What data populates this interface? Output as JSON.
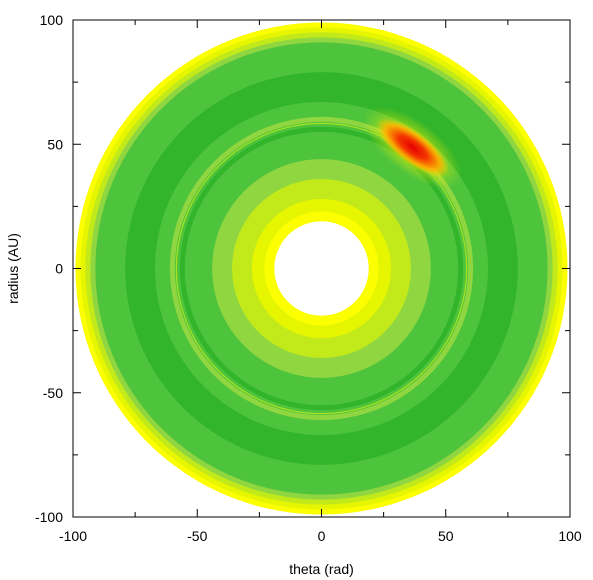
{
  "chart_data": {
    "type": "heatmap",
    "title": "",
    "xlabel": "theta (rad)",
    "ylabel": "radius (AU)",
    "xlim": [
      -100,
      100
    ],
    "ylim": [
      -100,
      100
    ],
    "x_ticks": [
      -100,
      -50,
      0,
      50,
      100
    ],
    "y_ticks": [
      -100,
      -50,
      0,
      50,
      100
    ],
    "grid": false,
    "legend": "none",
    "disk": {
      "inner_radius": 19,
      "outer_radius": 99,
      "gap_radius": 58,
      "hotspot_angle_deg": 53,
      "hotspot_radius": 61
    },
    "colors": {
      "bright_yellow": "#fbff00",
      "yellow": "#e6f500",
      "yellow_green": "#c2ea1a",
      "light_green": "#8fd640",
      "green": "#4ec43c",
      "dark_green": "#33b52b",
      "orange": "#ffa500",
      "red": "#e60000"
    }
  }
}
